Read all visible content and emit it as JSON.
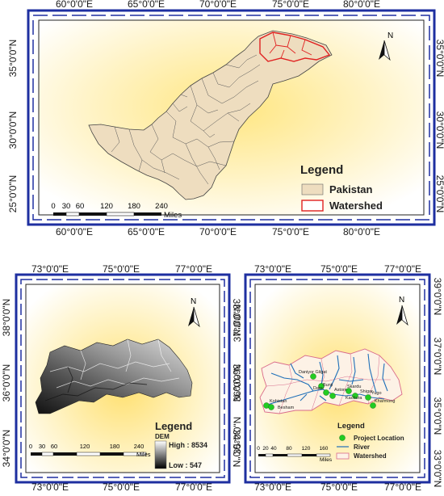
{
  "map1": {
    "top_lon": [
      "60°0'0\"E",
      "65°0'0\"E",
      "70°0'0\"E",
      "75°0'0\"E",
      "80°0'0\"E"
    ],
    "bottom_lon": [
      "60°0'0\"E",
      "65°0'0\"E",
      "70°0'0\"E",
      "75°0'0\"E",
      "80°0'0\"E"
    ],
    "lat": [
      "35°0'0\"N",
      "30°0'0\"N",
      "25°0'0\"N"
    ],
    "legend_title": "Legend",
    "legend_items": [
      "Pakistan",
      "Watershed"
    ],
    "scale_ticks": [
      "0",
      "30",
      "60",
      "120",
      "180",
      "240"
    ],
    "scale_unit": "Miles",
    "north": "N",
    "colors": {
      "pakistan": "#eeddbf",
      "watershed": "#e02020"
    }
  },
  "map2": {
    "top_lon": [
      "73°0'0\"E",
      "75°0'0\"E",
      "77°0'0\"E"
    ],
    "bottom_lon": [
      "73°0'0\"E",
      "75°0'0\"E",
      "77°0'0\"E"
    ],
    "lat": [
      "38°0'0\"N",
      "36°0'0\"N",
      "34°0'0\"N"
    ],
    "legend_title": "Legend",
    "dem_label": "DEM",
    "high": "High : 8534",
    "low": "Low : 547",
    "scale_ticks": [
      "0",
      "30",
      "60",
      "120",
      "180",
      "240"
    ],
    "scale_unit": "Miles",
    "north": "N"
  },
  "map3": {
    "top_lon": [
      "73°0'0\"E",
      "75°0'0\"E",
      "77°0'0\"E"
    ],
    "bottom_lon": [
      "73°0'0\"E",
      "75°0'0\"E",
      "77°0'0\"E"
    ],
    "lat_left": [
      "37°0'0\"N",
      "36°0'0\"N",
      "35°0'0\"N"
    ],
    "lat_right": [
      "39°0'0\"N",
      "37°0'0\"N",
      "35°0'0\"N",
      "33°0'0\"N"
    ],
    "legend_title": "Legend",
    "legend_items": [
      "Project Location",
      "River",
      "Watershed"
    ],
    "places": [
      "Daniyor Gilgat",
      "Bunji",
      "Dasu",
      "Astore",
      "Skardu",
      "Kachura",
      "Yugo",
      "Shigar",
      "Kharmong",
      "Kohistan",
      "Besham"
    ],
    "scale_ticks": [
      "0",
      "20",
      "40",
      "80",
      "120",
      "160"
    ],
    "scale_unit": "Miles",
    "north": "N",
    "colors": {
      "project": "#22cc22",
      "river": "#1e6fb8",
      "watershed": "#d96a8a"
    }
  }
}
